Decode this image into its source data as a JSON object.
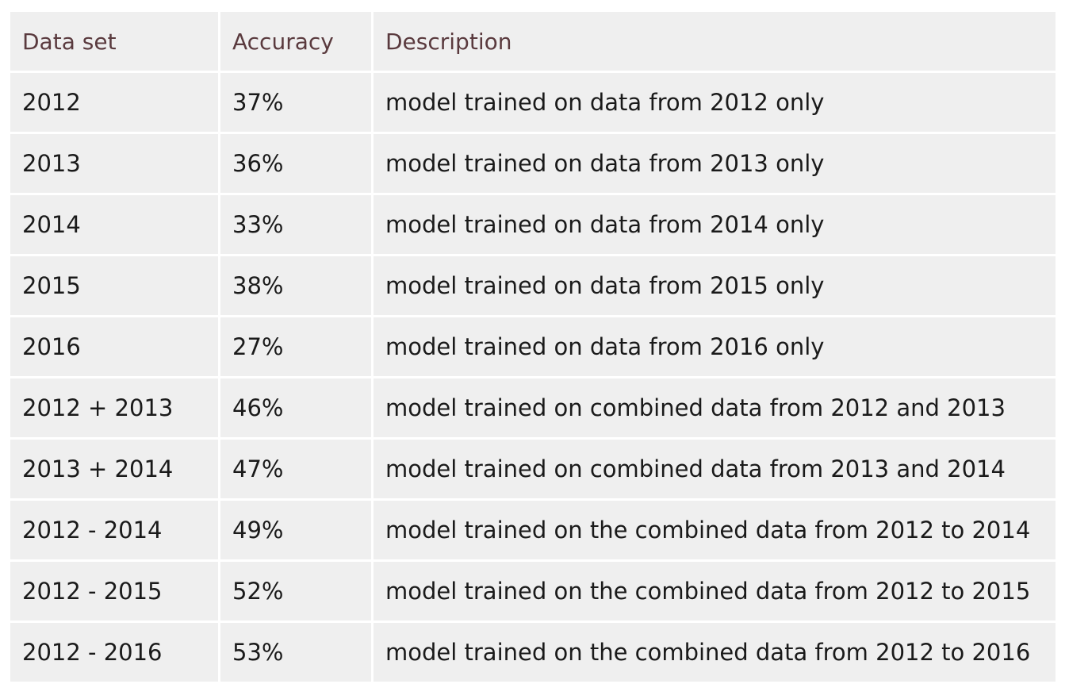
{
  "table": {
    "headers": [
      "Data set",
      "Accuracy",
      "Description"
    ],
    "rows": [
      [
        "2012",
        "37%",
        "model trained on data from 2012 only"
      ],
      [
        "2013",
        "36%",
        "model trained on data from 2013 only"
      ],
      [
        "2014",
        "33%",
        "model trained on data from 2014 only"
      ],
      [
        "2015",
        "38%",
        "model trained on data from 2015 only"
      ],
      [
        "2016",
        "27%",
        "model trained on data from 2016 only"
      ],
      [
        "2012 + 2013",
        "46%",
        "model trained on combined data from 2012 and 2013"
      ],
      [
        "2013 + 2014",
        "47%",
        "model trained on combined data from 2013 and 2014"
      ],
      [
        "2012 - 2014",
        "49%",
        "model trained on the combined data from 2012 to 2014"
      ],
      [
        "2012 - 2015",
        "52%",
        "model trained on the combined data from 2012 to 2015"
      ],
      [
        "2012 - 2016",
        "53%",
        "model trained on the combined data from 2012 to 2016"
      ]
    ]
  },
  "colors": {
    "header_text": "#5a3a3e",
    "cell_background": "#efefef",
    "body_text": "#1a1a1a"
  }
}
